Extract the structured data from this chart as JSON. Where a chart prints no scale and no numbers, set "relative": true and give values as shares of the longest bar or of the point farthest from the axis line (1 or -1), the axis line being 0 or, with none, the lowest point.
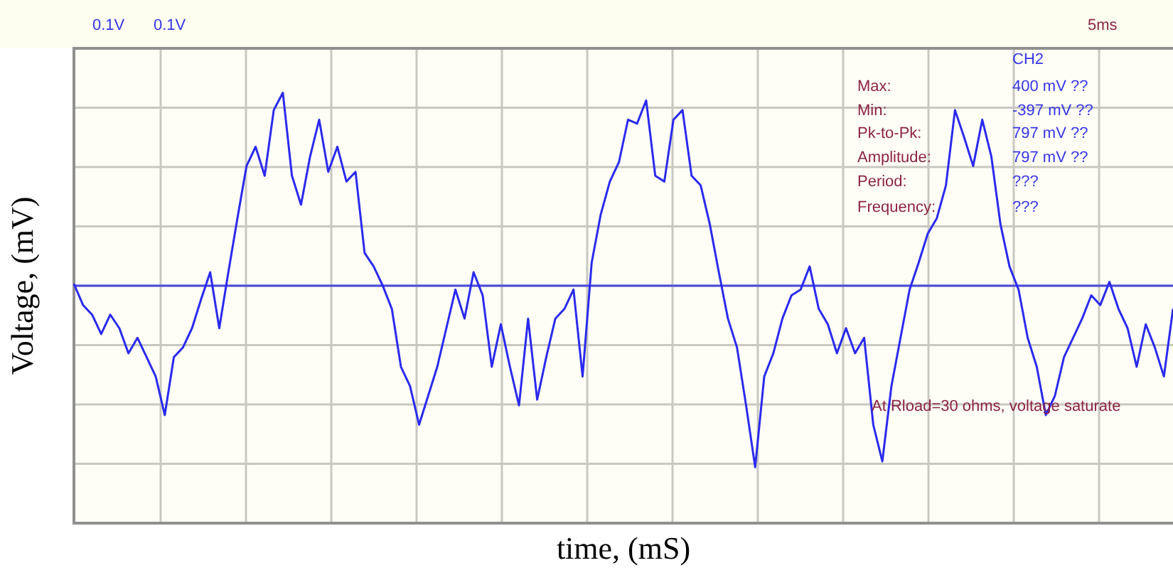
{
  "chart_data": {
    "type": "line",
    "relative": true,
    "xlabel": "time, (mS)",
    "ylabel": "Voltage, (mV)",
    "grid": true,
    "legend": false,
    "marker": "none",
    "line_style": "solid",
    "annotations": [
      "0.1V",
      "0.1V",
      "5ms",
      "CH2",
      "Max:",
      "400 mV ??",
      "Min:",
      "-397 mV ??",
      "Pk-to-Pk:",
      "797 mV ??",
      "Amplitude:",
      "797 mV ??",
      "Period:",
      "???",
      "Frequency:",
      "???",
      "At Rload=30 ohms, voltage saturate"
    ],
    "ref_lines": [
      {
        "axis": "y",
        "value": 0,
        "color": "#4a4ae0"
      }
    ],
    "categories": [
      null,
      null,
      null,
      null,
      null,
      null,
      null,
      null,
      null,
      null,
      null,
      null,
      null,
      null,
      null,
      null,
      null,
      null,
      null,
      null,
      null,
      null,
      null,
      null,
      null,
      null,
      null,
      null,
      null,
      null,
      null,
      null,
      null,
      null,
      null,
      null,
      null,
      null,
      null,
      null,
      null,
      null,
      null,
      null,
      null,
      null,
      null,
      null,
      null,
      null,
      null,
      null,
      null,
      null,
      null,
      null,
      null,
      null,
      null,
      null,
      null,
      null,
      null,
      null,
      null,
      null,
      null,
      null,
      null,
      null,
      null,
      null,
      null,
      null,
      null,
      null,
      null,
      null,
      null,
      null,
      null,
      null,
      null,
      null,
      null,
      null,
      null,
      null,
      null,
      null,
      null,
      null,
      null,
      null,
      null,
      null,
      null,
      null,
      null,
      null,
      null,
      null,
      null,
      null,
      null,
      null,
      null,
      null,
      null,
      null,
      null,
      null,
      null,
      null,
      null,
      null,
      null,
      null,
      null,
      null,
      null,
      null
    ],
    "series": [
      {
        "color": "#2a2aee",
        "values": [
          0.01,
          -0.1,
          -0.15,
          -0.25,
          -0.15,
          -0.22,
          -0.35,
          -0.27,
          -0.37,
          -0.47,
          -0.67,
          -0.37,
          -0.32,
          -0.22,
          -0.07,
          0.07,
          -0.22,
          0.07,
          0.35,
          0.62,
          0.72,
          0.57,
          0.91,
          1,
          0.57,
          0.42,
          0.67,
          0.86,
          0.59,
          0.72,
          0.54,
          0.59,
          0.17,
          0.1,
          0,
          -0.12,
          -0.42,
          -0.52,
          -0.72,
          -0.57,
          -0.42,
          -0.22,
          -0.02,
          -0.17,
          0.07,
          -0.05,
          -0.42,
          -0.2,
          -0.42,
          -0.62,
          -0.17,
          -0.59,
          -0.37,
          -0.17,
          -0.12,
          -0.02,
          -0.47,
          0.12,
          0.37,
          0.54,
          0.64,
          0.86,
          0.84,
          0.96,
          0.57,
          0.54,
          0.86,
          0.91,
          0.57,
          0.52,
          0.32,
          0.07,
          -0.17,
          -0.32,
          -0.62,
          -0.94,
          -0.47,
          -0.35,
          -0.17,
          -0.05,
          -0.02,
          0.1,
          -0.12,
          -0.2,
          -0.35,
          -0.22,
          -0.35,
          -0.27,
          -0.72,
          -0.91,
          -0.52,
          -0.27,
          -0.02,
          0.12,
          0.27,
          0.35,
          0.52,
          0.91,
          0.77,
          0.62,
          0.86,
          0.67,
          0.32,
          0.1,
          -0.02,
          -0.27,
          -0.42,
          -0.67,
          -0.57,
          -0.37,
          -0.27,
          -0.17,
          -0.05,
          -0.1,
          0.02,
          -0.12,
          -0.22,
          -0.42,
          -0.2,
          -0.32,
          -0.47,
          -0.12
        ]
      }
    ]
  }
}
